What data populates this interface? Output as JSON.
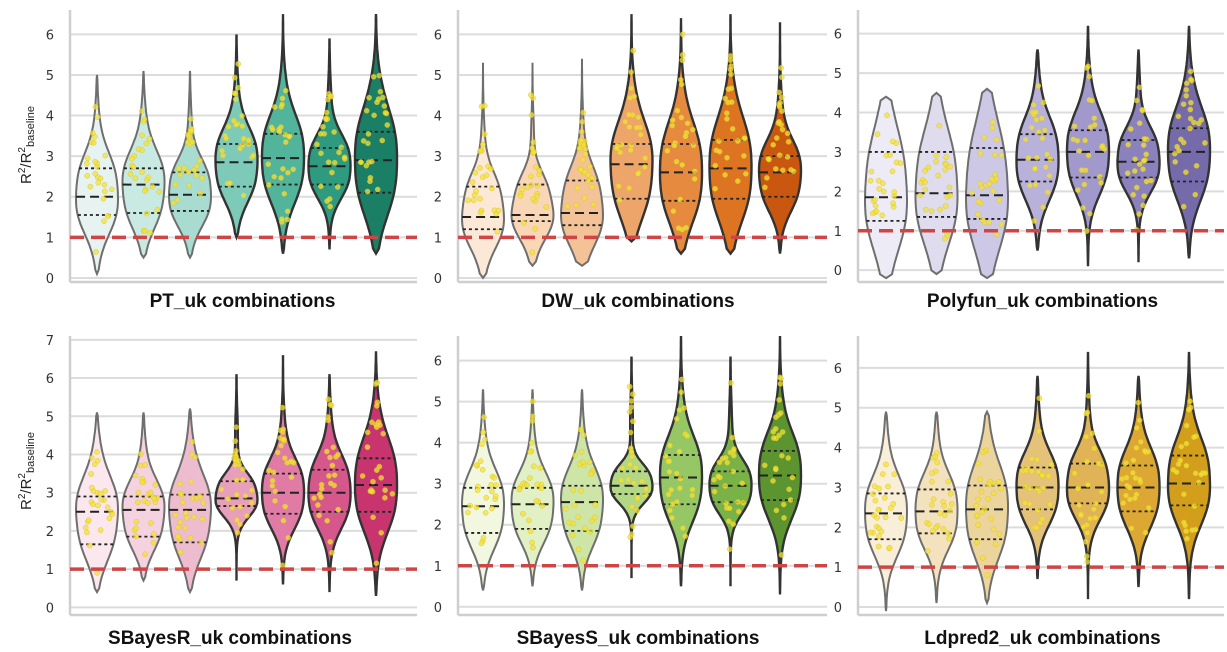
{
  "chart_data": [
    {
      "type": "violin",
      "title": "PT_uk combinations",
      "ylabel": "R²/R²baseline",
      "ylim": [
        -0.1,
        6.6
      ],
      "yticks": [
        "0",
        "1",
        "2",
        "3",
        "4",
        "5",
        "6"
      ],
      "baseline": 1,
      "colors": [
        "#e6f3f0",
        "#c9eae3",
        "#a8dcd0",
        "#7ecab8",
        "#53b49c",
        "#2e9b81",
        "#1b7f66"
      ],
      "series": [
        {
          "min": 0.1,
          "max": 5.0,
          "q1": 1.55,
          "median": 2.0,
          "q3": 2.7
        },
        {
          "min": 0.5,
          "max": 5.1,
          "q1": 1.6,
          "median": 2.3,
          "q3": 2.7
        },
        {
          "min": 0.5,
          "max": 5.1,
          "q1": 1.65,
          "median": 2.05,
          "q3": 2.6
        },
        {
          "min": 1.0,
          "max": 6.0,
          "q1": 2.25,
          "median": 2.85,
          "q3": 3.3
        },
        {
          "min": 0.6,
          "max": 6.5,
          "q1": 2.3,
          "median": 2.95,
          "q3": 3.55
        },
        {
          "min": 0.7,
          "max": 5.9,
          "q1": 2.3,
          "median": 2.75,
          "q3": 3.2
        },
        {
          "min": 0.6,
          "max": 6.5,
          "q1": 2.1,
          "median": 2.9,
          "q3": 3.6
        }
      ]
    },
    {
      "type": "violin",
      "title": "DW_uk combinations",
      "ylabel": "",
      "ylim": [
        -0.1,
        6.6
      ],
      "yticks": [
        "0",
        "1",
        "2",
        "3",
        "4",
        "5",
        "6"
      ],
      "baseline": 1,
      "colors": [
        "#fce8d7",
        "#f8d6b6",
        "#f3c296",
        "#eda56a",
        "#e58a3e",
        "#dc7422",
        "#c9570f"
      ],
      "series": [
        {
          "min": 0.0,
          "max": 5.3,
          "q1": 1.2,
          "median": 1.5,
          "q3": 2.25
        },
        {
          "min": 0.3,
          "max": 5.3,
          "q1": 1.4,
          "median": 1.55,
          "q3": 2.3
        },
        {
          "min": 0.3,
          "max": 5.4,
          "q1": 1.3,
          "median": 1.6,
          "q3": 2.4
        },
        {
          "min": 0.9,
          "max": 6.5,
          "q1": 1.95,
          "median": 2.8,
          "q3": 3.3
        },
        {
          "min": 0.6,
          "max": 6.4,
          "q1": 1.9,
          "median": 2.6,
          "q3": 3.3
        },
        {
          "min": 0.6,
          "max": 6.5,
          "q1": 1.95,
          "median": 2.7,
          "q3": 3.4
        },
        {
          "min": 0.6,
          "max": 6.3,
          "q1": 2.0,
          "median": 2.6,
          "q3": 3.0
        }
      ]
    },
    {
      "type": "violin",
      "title": "Polyfun_uk combinations",
      "ylabel": "",
      "ylim": [
        -0.3,
        6.6
      ],
      "yticks": [
        "0",
        "1",
        "2",
        "3",
        "4",
        "5",
        "6"
      ],
      "baseline": 1,
      "colors": [
        "#edebf5",
        "#dfdcee",
        "#cdc8e6",
        "#b8b1da",
        "#a199cc",
        "#8b82bd",
        "#756baa"
      ],
      "series": [
        {
          "min": -0.2,
          "max": 4.4,
          "q1": 1.25,
          "median": 1.85,
          "q3": 3.0
        },
        {
          "min": -0.1,
          "max": 4.5,
          "q1": 1.35,
          "median": 1.95,
          "q3": 3.0
        },
        {
          "min": -0.2,
          "max": 4.6,
          "q1": 1.3,
          "median": 1.9,
          "q3": 3.1
        },
        {
          "min": 0.5,
          "max": 5.6,
          "q1": 2.25,
          "median": 2.8,
          "q3": 3.45
        },
        {
          "min": 0.1,
          "max": 6.2,
          "q1": 2.35,
          "median": 3.0,
          "q3": 3.55
        },
        {
          "min": 0.2,
          "max": 5.6,
          "q1": 2.35,
          "median": 2.75,
          "q3": 3.3
        },
        {
          "min": 0.3,
          "max": 6.2,
          "q1": 2.25,
          "median": 3.0,
          "q3": 3.6
        }
      ]
    },
    {
      "type": "violin",
      "title": "SBayesR_uk combinations",
      "ylabel": "R²/R²baseline",
      "ylim": [
        -0.2,
        7.1
      ],
      "yticks": [
        "0",
        "1",
        "2",
        "3",
        "4",
        "5",
        "6",
        "7"
      ],
      "baseline": 1,
      "colors": [
        "#fbe7ee",
        "#f4d2df",
        "#eebccf",
        "#e79fbb",
        "#e07ba6",
        "#d6578c",
        "#c8356e"
      ],
      "series": [
        {
          "min": 0.4,
          "max": 5.1,
          "q1": 1.65,
          "median": 2.5,
          "q3": 2.9
        },
        {
          "min": 0.7,
          "max": 5.1,
          "q1": 1.85,
          "median": 2.55,
          "q3": 2.9
        },
        {
          "min": 0.4,
          "max": 5.2,
          "q1": 1.7,
          "median": 2.55,
          "q3": 2.95
        },
        {
          "min": 0.7,
          "max": 6.1,
          "q1": 2.65,
          "median": 2.85,
          "q3": 3.3
        },
        {
          "min": 0.6,
          "max": 6.6,
          "q1": 2.45,
          "median": 3.0,
          "q3": 3.5
        },
        {
          "min": 0.4,
          "max": 6.1,
          "q1": 2.5,
          "median": 3.0,
          "q3": 3.6
        },
        {
          "min": 0.3,
          "max": 6.7,
          "q1": 2.5,
          "median": 3.2,
          "q3": 3.9
        }
      ]
    },
    {
      "type": "violin",
      "title": "SBayesS_uk combinations",
      "ylabel": "",
      "ylim": [
        -0.2,
        6.6
      ],
      "yticks": [
        "0",
        "1",
        "2",
        "3",
        "4",
        "5",
        "6"
      ],
      "baseline": 1,
      "colors": [
        "#f1f8df",
        "#e1f0c5",
        "#cde6a8",
        "#b3d885",
        "#96c765",
        "#79b246",
        "#5c9430"
      ],
      "series": [
        {
          "min": 0.4,
          "max": 5.3,
          "q1": 1.8,
          "median": 2.45,
          "q3": 2.9
        },
        {
          "min": 0.5,
          "max": 5.3,
          "q1": 1.9,
          "median": 2.5,
          "q3": 2.9
        },
        {
          "min": 0.4,
          "max": 5.3,
          "q1": 1.85,
          "median": 2.55,
          "q3": 2.95
        },
        {
          "min": 0.7,
          "max": 6.1,
          "q1": 2.75,
          "median": 2.95,
          "q3": 3.3
        },
        {
          "min": 0.5,
          "max": 6.6,
          "q1": 2.5,
          "median": 3.15,
          "q3": 3.7
        },
        {
          "min": 0.5,
          "max": 6.1,
          "q1": 2.55,
          "median": 2.95,
          "q3": 3.3
        },
        {
          "min": 0.3,
          "max": 6.6,
          "q1": 2.6,
          "median": 3.2,
          "q3": 3.8
        }
      ]
    },
    {
      "type": "violin",
      "title": "Ldpred2_uk combinations",
      "ylabel": "",
      "ylim": [
        -0.2,
        6.8
      ],
      "yticks": [
        "0",
        "1",
        "2",
        "3",
        "4",
        "5",
        "6"
      ],
      "baseline": 1,
      "colors": [
        "#f9eed8",
        "#f3e2bd",
        "#ecd49d",
        "#e5c27a",
        "#e0b356",
        "#dca833",
        "#d29e1c"
      ],
      "series": [
        {
          "min": -0.1,
          "max": 4.9,
          "q1": 1.7,
          "median": 2.35,
          "q3": 2.85
        },
        {
          "min": 0.1,
          "max": 4.9,
          "q1": 1.85,
          "median": 2.4,
          "q3": 2.95
        },
        {
          "min": 0.1,
          "max": 4.9,
          "q1": 1.7,
          "median": 2.45,
          "q3": 3.05
        },
        {
          "min": 0.7,
          "max": 5.8,
          "q1": 2.45,
          "median": 3.0,
          "q3": 3.5
        },
        {
          "min": 0.2,
          "max": 6.4,
          "q1": 2.6,
          "median": 3.0,
          "q3": 3.6
        },
        {
          "min": 0.5,
          "max": 5.8,
          "q1": 2.4,
          "median": 3.0,
          "q3": 3.55
        },
        {
          "min": 0.2,
          "max": 6.4,
          "q1": 2.55,
          "median": 3.1,
          "q3": 3.8
        }
      ]
    }
  ]
}
